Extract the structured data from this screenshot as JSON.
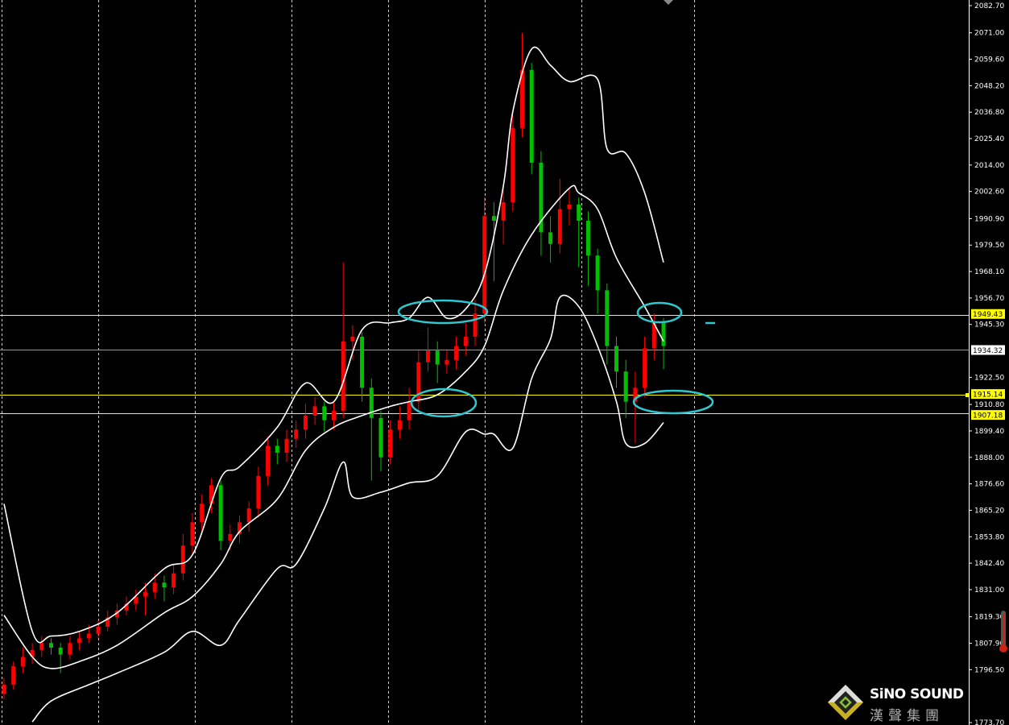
{
  "chart_data": {
    "type": "candlestick",
    "title": "",
    "xlabel": "",
    "ylabel": "",
    "ylim": [
      1773.7,
      2082.7
    ],
    "grid": "vertical dashed",
    "colors": {
      "background": "#000000",
      "up": "#ff0000",
      "down": "#00c000",
      "bands": "#ffffff",
      "levels": "#ffff00",
      "annotation": "#30c8d0"
    },
    "y_ticks": [
      "2082.70",
      "2071.00",
      "2059.60",
      "2048.20",
      "2036.80",
      "2025.40",
      "2014.00",
      "2002.60",
      "1990.90",
      "1979.50",
      "1968.10",
      "1956.70",
      "1945.30",
      "1922.50",
      "1910.80",
      "1899.40",
      "1888.00",
      "1876.60",
      "1865.20",
      "1853.80",
      "1842.40",
      "1831.00",
      "1819.30",
      "1807.90",
      "1796.50",
      "1773.70"
    ],
    "levels": [
      {
        "value": 1949.43,
        "label": "1949.43",
        "color": "#ffff00"
      },
      {
        "value": 1934.32,
        "label": "1934.32",
        "color": "#ffffff"
      },
      {
        "value": 1915.14,
        "label": "1915.14",
        "color": "#ffff00"
      },
      {
        "value": 1907.18,
        "label": "1907.18",
        "color": "#ffff00"
      }
    ],
    "candles_ohlc": [
      [
        1786,
        1793,
        1784,
        1790
      ],
      [
        1790,
        1800,
        1788,
        1798
      ],
      [
        1798,
        1806,
        1795,
        1802
      ],
      [
        1802,
        1808,
        1799,
        1805
      ],
      [
        1805,
        1811,
        1802,
        1808
      ],
      [
        1808,
        1810,
        1803,
        1806
      ],
      [
        1806,
        1808,
        1795,
        1803
      ],
      [
        1803,
        1811,
        1801,
        1808
      ],
      [
        1808,
        1813,
        1805,
        1810
      ],
      [
        1810,
        1816,
        1808,
        1812
      ],
      [
        1812,
        1818,
        1810,
        1815
      ],
      [
        1815,
        1822,
        1813,
        1819
      ],
      [
        1819,
        1825,
        1816,
        1822
      ],
      [
        1822,
        1828,
        1820,
        1825
      ],
      [
        1825,
        1831,
        1822,
        1828
      ],
      [
        1828,
        1834,
        1820,
        1830
      ],
      [
        1830,
        1838,
        1827,
        1834
      ],
      [
        1834,
        1837,
        1826,
        1832
      ],
      [
        1832,
        1842,
        1829,
        1838
      ],
      [
        1838,
        1855,
        1835,
        1850
      ],
      [
        1850,
        1864,
        1846,
        1860
      ],
      [
        1860,
        1872,
        1856,
        1868
      ],
      [
        1868,
        1879,
        1864,
        1876
      ],
      [
        1876,
        1878,
        1848,
        1852
      ],
      [
        1852,
        1859,
        1848,
        1855
      ],
      [
        1855,
        1863,
        1851,
        1860
      ],
      [
        1860,
        1869,
        1856,
        1866
      ],
      [
        1866,
        1884,
        1862,
        1880
      ],
      [
        1880,
        1897,
        1876,
        1893
      ],
      [
        1893,
        1896,
        1885,
        1890
      ],
      [
        1890,
        1900,
        1886,
        1896
      ],
      [
        1896,
        1904,
        1892,
        1900
      ],
      [
        1900,
        1911,
        1896,
        1906
      ],
      [
        1906,
        1914,
        1902,
        1910
      ],
      [
        1910,
        1912,
        1899,
        1904
      ],
      [
        1904,
        1912,
        1900,
        1908
      ],
      [
        1908,
        1972,
        1905,
        1938
      ],
      [
        1938,
        1945,
        1930,
        1940
      ],
      [
        1940,
        1942,
        1912,
        1918
      ],
      [
        1918,
        1922,
        1878,
        1905
      ],
      [
        1905,
        1908,
        1882,
        1888
      ],
      [
        1888,
        1904,
        1885,
        1900
      ],
      [
        1900,
        1910,
        1896,
        1904
      ],
      [
        1904,
        1918,
        1900,
        1912
      ],
      [
        1912,
        1934,
        1908,
        1929
      ],
      [
        1929,
        1944,
        1925,
        1934
      ],
      [
        1934,
        1938,
        1920,
        1928
      ],
      [
        1928,
        1934,
        1924,
        1930
      ],
      [
        1930,
        1940,
        1926,
        1936
      ],
      [
        1936,
        1946,
        1932,
        1940
      ],
      [
        1940,
        1956,
        1936,
        1950
      ],
      [
        1950,
        2000,
        1946,
        1992
      ],
      [
        1992,
        1998,
        1964,
        1990
      ],
      [
        1990,
        2004,
        1980,
        1998
      ],
      [
        1998,
        2036,
        1994,
        2030
      ],
      [
        2030,
        2071,
        2026,
        2055
      ],
      [
        2055,
        2058,
        2010,
        2015
      ],
      [
        2015,
        2020,
        1975,
        1985
      ],
      [
        1985,
        1992,
        1972,
        1980
      ],
      [
        1980,
        2008,
        1976,
        1995
      ],
      [
        1995,
        2004,
        1988,
        1997
      ],
      [
        1997,
        2000,
        1970,
        1990
      ],
      [
        1990,
        1994,
        1962,
        1975
      ],
      [
        1975,
        1978,
        1950,
        1960
      ],
      [
        1960,
        1963,
        1928,
        1936
      ],
      [
        1936,
        1940,
        1918,
        1925
      ],
      [
        1925,
        1930,
        1905,
        1912
      ],
      [
        1912,
        1925,
        1894,
        1918
      ],
      [
        1918,
        1940,
        1914,
        1935
      ],
      [
        1935,
        1950,
        1930,
        1946
      ],
      [
        1946,
        1948,
        1926,
        1936
      ]
    ],
    "bollinger": {
      "upper": [
        [
          0,
          1868
        ],
        [
          3,
          1813
        ],
        [
          5,
          1811
        ],
        [
          8,
          1813
        ],
        [
          12,
          1821
        ],
        [
          17,
          1840
        ],
        [
          20,
          1846
        ],
        [
          23,
          1879
        ],
        [
          25,
          1884
        ],
        [
          29,
          1901
        ],
        [
          32,
          1920
        ],
        [
          35,
          1912
        ],
        [
          38,
          1943
        ],
        [
          41,
          1946
        ],
        [
          43,
          1948
        ],
        [
          45,
          1957
        ],
        [
          47,
          1948
        ],
        [
          49,
          1952
        ],
        [
          51,
          1967
        ],
        [
          53,
          2005
        ],
        [
          54,
          2037
        ],
        [
          56,
          2064
        ],
        [
          58,
          2057
        ],
        [
          60,
          2050
        ],
        [
          63,
          2051
        ],
        [
          64,
          2021
        ],
        [
          66,
          2019
        ],
        [
          68,
          2002
        ],
        [
          70,
          1972
        ]
      ],
      "middle": [
        [
          0,
          1820
        ],
        [
          3,
          1802
        ],
        [
          5,
          1797
        ],
        [
          8,
          1800
        ],
        [
          12,
          1807
        ],
        [
          17,
          1821
        ],
        [
          20,
          1828
        ],
        [
          23,
          1842
        ],
        [
          25,
          1856
        ],
        [
          29,
          1870
        ],
        [
          32,
          1891
        ],
        [
          35,
          1901
        ],
        [
          38,
          1906
        ],
        [
          41,
          1910
        ],
        [
          43,
          1912
        ],
        [
          46,
          1915
        ],
        [
          49,
          1925
        ],
        [
          51,
          1936
        ],
        [
          53,
          1960
        ],
        [
          56,
          1984
        ],
        [
          60,
          2004
        ],
        [
          61,
          2002
        ],
        [
          63,
          1995
        ],
        [
          65,
          1974
        ],
        [
          68,
          1953
        ],
        [
          70,
          1938
        ]
      ],
      "lower": [
        [
          3,
          1774
        ],
        [
          5,
          1783
        ],
        [
          9,
          1790
        ],
        [
          12,
          1795
        ],
        [
          17,
          1804
        ],
        [
          20,
          1813
        ],
        [
          23,
          1807
        ],
        [
          25,
          1818
        ],
        [
          29,
          1840
        ],
        [
          31,
          1842
        ],
        [
          34,
          1866
        ],
        [
          36,
          1886
        ],
        [
          37,
          1871
        ],
        [
          40,
          1873
        ],
        [
          43,
          1877
        ],
        [
          46,
          1880
        ],
        [
          49,
          1899
        ],
        [
          51,
          1898
        ],
        [
          52,
          1898
        ],
        [
          54,
          1892
        ],
        [
          56,
          1922
        ],
        [
          58,
          1939
        ],
        [
          59,
          1957
        ],
        [
          61,
          1953
        ],
        [
          63,
          1936
        ],
        [
          65,
          1912
        ],
        [
          66,
          1894
        ],
        [
          68,
          1894
        ],
        [
          70,
          1903
        ]
      ]
    }
  },
  "logo": {
    "name": "SiNO SOUND",
    "chinese": "漢聲集團"
  }
}
